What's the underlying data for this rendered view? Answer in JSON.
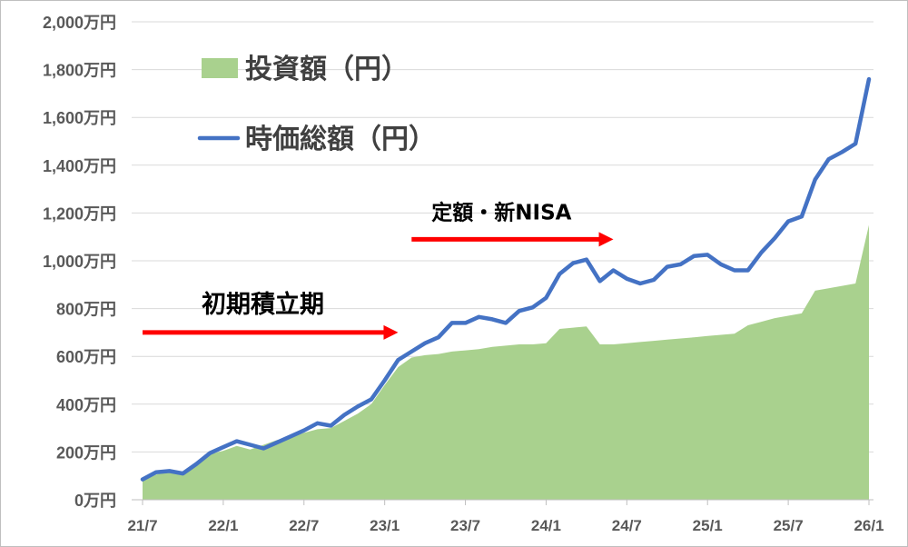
{
  "chart_data": {
    "type": "area",
    "yunit": "万円",
    "ylim": [
      0,
      2000
    ],
    "yticks": [
      0,
      200,
      400,
      600,
      800,
      1000,
      1200,
      1400,
      1600,
      1800,
      2000
    ],
    "ytick_labels": [
      "0万円",
      "200万円",
      "400万円",
      "600万円",
      "800万円",
      "1,000万円",
      "1,200万円",
      "1,400万円",
      "1,600万円",
      "1,800万円",
      "2,000万円"
    ],
    "x_tick_labels": [
      "21/7",
      "22/1",
      "22/7",
      "23/1",
      "23/7",
      "24/1",
      "24/7",
      "25/1",
      "25/7",
      "26/1"
    ],
    "x": [
      "21/7",
      "21/8",
      "21/9",
      "21/10",
      "21/11",
      "21/12",
      "22/1",
      "22/2",
      "22/3",
      "22/4",
      "22/5",
      "22/6",
      "22/7",
      "22/8",
      "22/9",
      "22/10",
      "22/11",
      "22/12",
      "23/1",
      "23/2",
      "23/3",
      "23/4",
      "23/5",
      "23/6",
      "23/7",
      "23/8",
      "23/9",
      "23/10",
      "23/11",
      "23/12",
      "24/1",
      "24/2",
      "24/3",
      "24/4",
      "24/5",
      "24/6",
      "24/7",
      "24/8",
      "24/9",
      "24/10",
      "24/11",
      "24/12",
      "25/1",
      "25/2",
      "25/3",
      "25/4",
      "25/5",
      "25/6",
      "25/7",
      "25/8",
      "25/9",
      "25/10",
      "25/11",
      "25/12",
      "26/1"
    ],
    "grid": true,
    "legend_placement": "top-left",
    "series": [
      {
        "name": "投資額（円）",
        "type": "area",
        "color": "#a9d18e",
        "values": [
          80,
          105,
          120,
          105,
          150,
          190,
          205,
          225,
          210,
          230,
          250,
          260,
          280,
          295,
          300,
          330,
          360,
          400,
          480,
          555,
          595,
          605,
          610,
          620,
          625,
          630,
          640,
          645,
          650,
          650,
          655,
          715,
          720,
          725,
          650,
          650,
          655,
          660,
          665,
          670,
          675,
          680,
          685,
          690,
          695,
          730,
          745,
          760,
          770,
          780,
          875,
          885,
          895,
          905,
          1150
        ]
      },
      {
        "name": "時価総額（円）",
        "type": "line",
        "color": "#4472c4",
        "values": [
          85,
          115,
          120,
          110,
          150,
          195,
          220,
          245,
          230,
          215,
          240,
          265,
          290,
          320,
          310,
          355,
          390,
          420,
          500,
          585,
          620,
          655,
          680,
          740,
          740,
          765,
          755,
          740,
          790,
          805,
          845,
          945,
          990,
          1005,
          915,
          960,
          925,
          905,
          920,
          975,
          985,
          1020,
          1025,
          985,
          960,
          960,
          1035,
          1095,
          1165,
          1185,
          1340,
          1425,
          1455,
          1490,
          1760
        ]
      }
    ],
    "annotations": [
      {
        "text": "初期積立期",
        "arrow_from": "21/7",
        "arrow_to": "23/2",
        "y": 700,
        "color": "#ff0000"
      },
      {
        "text": "定額・新NISA",
        "arrow_from": "23/3",
        "arrow_to": "24/6",
        "y": 1090,
        "color": "#ff0000"
      }
    ]
  }
}
